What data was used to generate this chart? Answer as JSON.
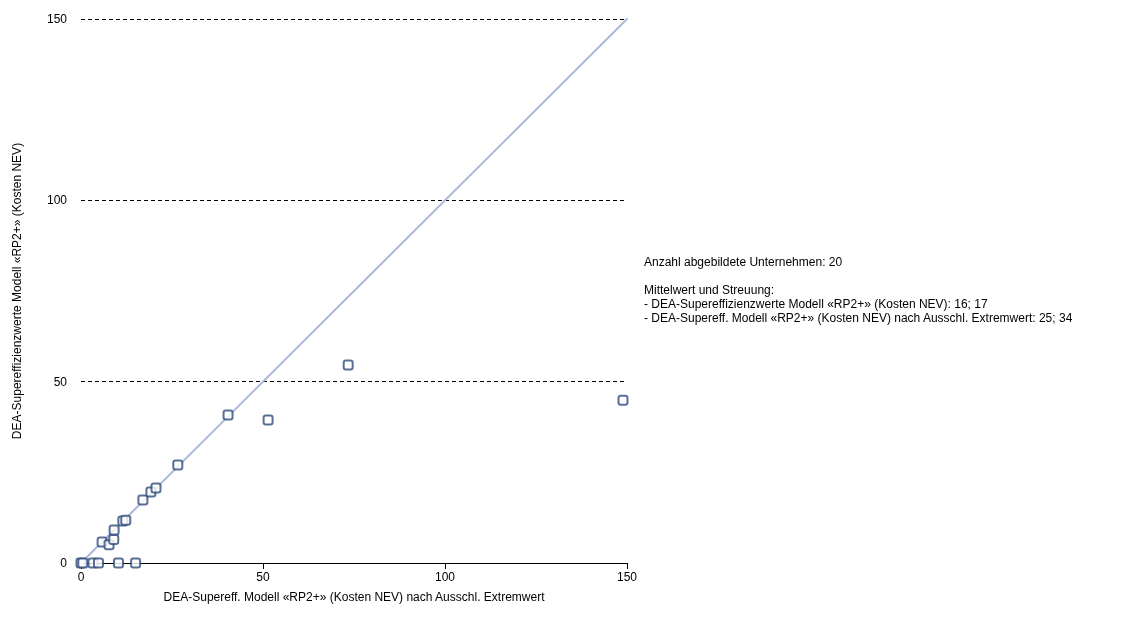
{
  "chart_data": {
    "type": "scatter",
    "xlabel": "DEA-Supereff. Modell «RP2+» (Kosten NEV) nach Ausschl. Extremwert",
    "ylabel": "DEA-Supereffizienzwerte Modell «RP2+» (Kosten NEV)",
    "series": [
      {
        "color": "#2f4b7c",
        "marker": "square",
        "x": [
          0,
          0.5,
          3.3,
          4.8,
          10.3,
          15,
          5.8,
          7.7,
          9,
          9.1,
          11.5,
          12.3,
          17,
          19.2,
          20.6,
          26.6,
          40.4,
          51.4,
          73.4,
          148.9
        ],
        "values": [
          0,
          0,
          0,
          0,
          0,
          0,
          5.8,
          5,
          6.5,
          9.1,
          11.6,
          11.8,
          17.4,
          19.6,
          20.7,
          27,
          40.8,
          39.4,
          54.6,
          44.9
        ]
      },
      {
        "type": "line",
        "color": "#a9b9d9",
        "marker": "none",
        "x": [
          0,
          150
        ],
        "values": [
          0,
          150
        ]
      }
    ],
    "xlim": [
      0,
      150
    ],
    "xticks": [
      0,
      50,
      100,
      150
    ],
    "ylim": [
      0,
      150
    ],
    "yticks": [
      0,
      50,
      100,
      150
    ],
    "grid": "y",
    "annotations": [
      "Anzahl abgebildete Unternehmen: 20",
      "Mittelwert und Streuung:",
      "- DEA-Supereffizienzwerte Modell «RP2+» (Kosten NEV): 16; 17",
      "- DEA-Supereff. Modell «RP2+» (Kosten NEV) nach Ausschl. Extremwert: 25; 34"
    ]
  }
}
